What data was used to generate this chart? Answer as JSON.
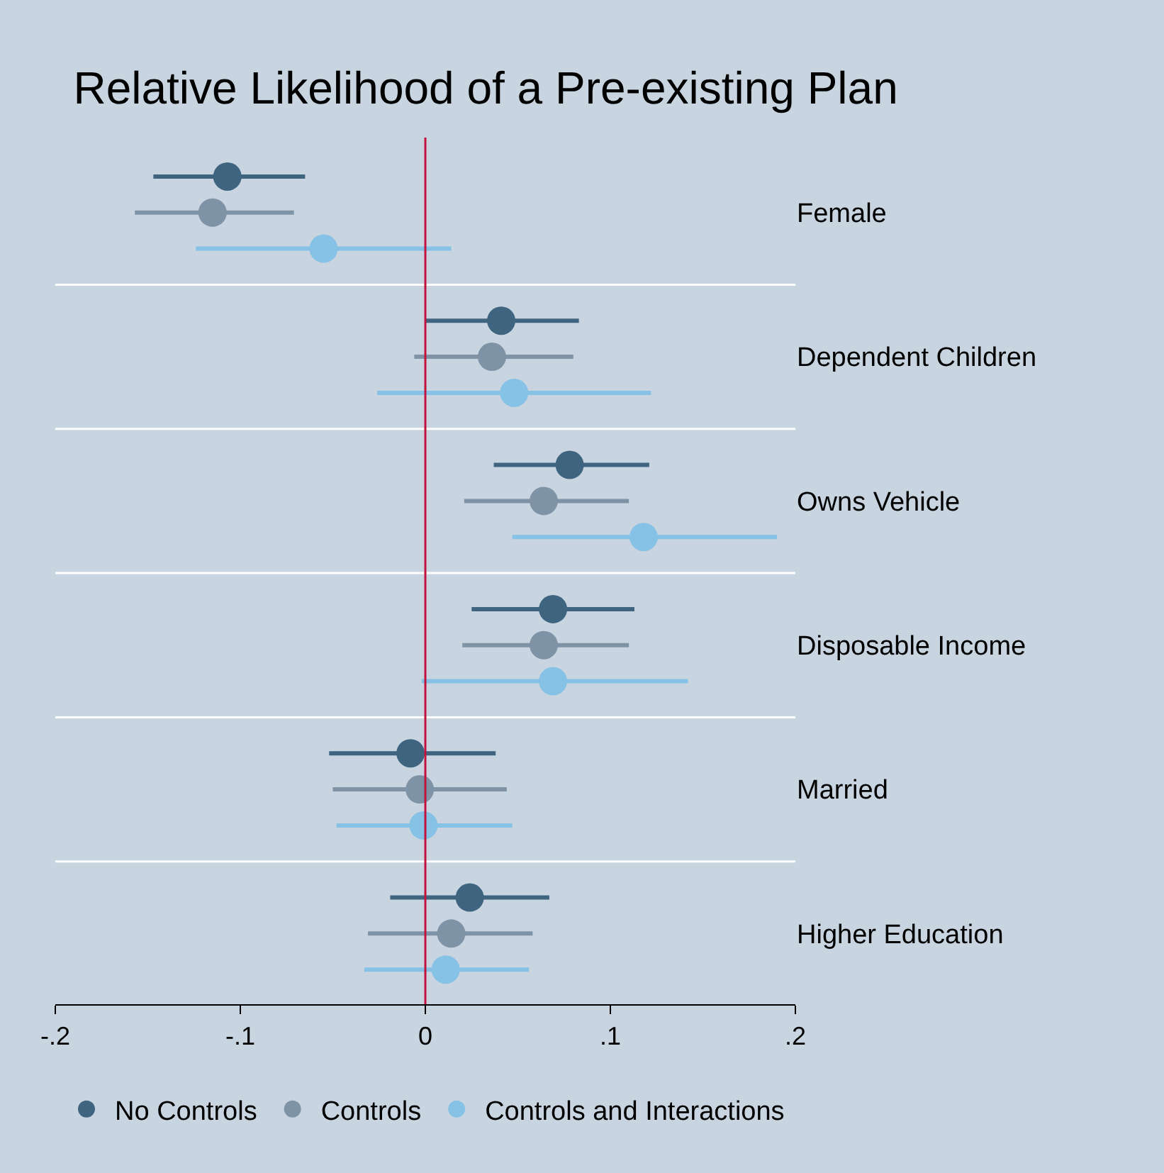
{
  "chart_data": {
    "type": "scatter",
    "orientation": "horizontal",
    "title": "Relative Likelihood of a Pre-existing Plan",
    "categories": [
      "Female",
      "Dependent Children",
      "Owns Vehicle",
      "Disposable Income",
      "Married",
      "Higher Education"
    ],
    "series": [
      {
        "name": "No Controls",
        "color": "#3e6480",
        "values": [
          -0.107,
          0.041,
          0.078,
          0.069,
          -0.008,
          0.024
        ],
        "errors": [
          [
            -0.147,
            -0.065
          ],
          [
            0.0,
            0.083
          ],
          [
            0.037,
            0.121
          ],
          [
            0.025,
            0.113
          ],
          [
            -0.052,
            0.038
          ],
          [
            -0.019,
            0.067
          ]
        ]
      },
      {
        "name": "Controls",
        "color": "#7f93a6",
        "values": [
          -0.115,
          0.036,
          0.064,
          0.064,
          -0.003,
          0.014
        ],
        "errors": [
          [
            -0.157,
            -0.071
          ],
          [
            -0.006,
            0.08
          ],
          [
            0.021,
            0.11
          ],
          [
            0.02,
            0.11
          ],
          [
            -0.05,
            0.044
          ],
          [
            -0.031,
            0.058
          ]
        ]
      },
      {
        "name": "Controls and Interactions",
        "color": "#86c1e6",
        "values": [
          -0.055,
          0.048,
          0.118,
          0.069,
          -0.001,
          0.011
        ],
        "errors": [
          [
            -0.124,
            0.014
          ],
          [
            -0.026,
            0.122
          ],
          [
            0.047,
            0.19
          ],
          [
            -0.002,
            0.142
          ],
          [
            -0.048,
            0.047
          ],
          [
            -0.033,
            0.056
          ]
        ]
      }
    ],
    "xlim": [
      -0.2,
      0.2
    ],
    "xticks": [
      {
        "value": -0.2,
        "label": "-.2"
      },
      {
        "value": -0.1,
        "label": "-.1"
      },
      0,
      {
        "value": 0.1,
        "label": ".1"
      },
      {
        "value": 0.2,
        "label": ".2"
      }
    ],
    "ref_lines": [
      {
        "axis": "x",
        "value": 0,
        "color": "#c0143c"
      }
    ],
    "grid": "y",
    "marker": "circle",
    "legend": "bottom"
  }
}
